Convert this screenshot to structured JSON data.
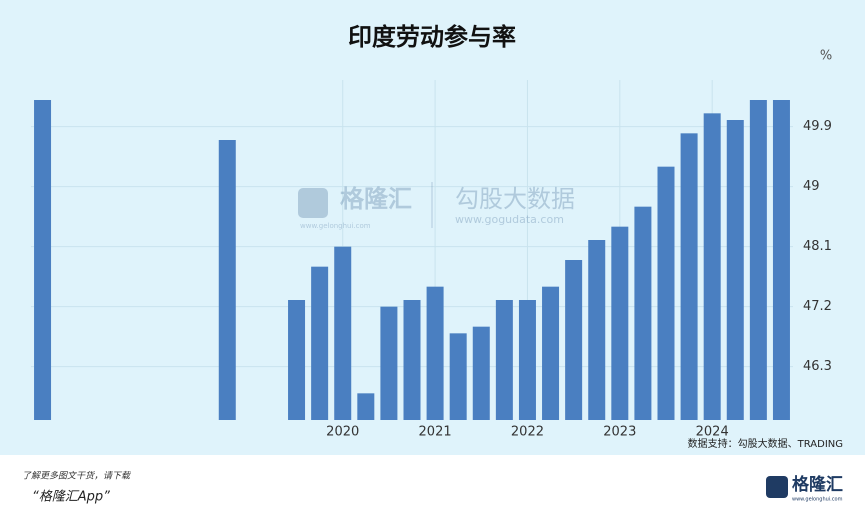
{
  "chart_data": {
    "type": "bar",
    "title": "印度劳动参与率",
    "unit": "%",
    "categories": [
      null,
      null,
      null,
      null,
      null,
      null,
      null,
      null,
      null,
      null,
      null,
      null,
      null,
      "2020",
      null,
      null,
      null,
      "2021",
      null,
      null,
      null,
      "2022",
      null,
      null,
      null,
      "2023",
      null,
      null,
      null,
      "2024",
      null,
      null,
      null
    ],
    "values": [
      50.3,
      null,
      null,
      null,
      null,
      null,
      null,
      null,
      49.7,
      null,
      null,
      47.3,
      47.8,
      48.1,
      45.9,
      47.2,
      47.3,
      47.5,
      46.8,
      46.9,
      47.3,
      47.3,
      47.5,
      47.9,
      48.2,
      48.4,
      48.7,
      49.3,
      49.8,
      50.1,
      50.0,
      50.3,
      50.3
    ],
    "color": "#4a7fc1",
    "ylim": [
      45.5,
      50.6
    ],
    "yticks": [
      46.3,
      47.2,
      48.1,
      49.0,
      49.9
    ],
    "grid": true,
    "source": "数据支持：勾股大数据、TRADING"
  },
  "watermark": {
    "brand": "格隆汇",
    "brand_url": "www.gelonghui.com",
    "partner": "勾股大数据",
    "partner_url": "www.gogudata.com"
  },
  "footer": {
    "line1": "了解更多图文干货，请下载",
    "line2": "“格隆汇App”",
    "logo": "格隆汇",
    "logo_url": "www.gelonghui.com"
  }
}
